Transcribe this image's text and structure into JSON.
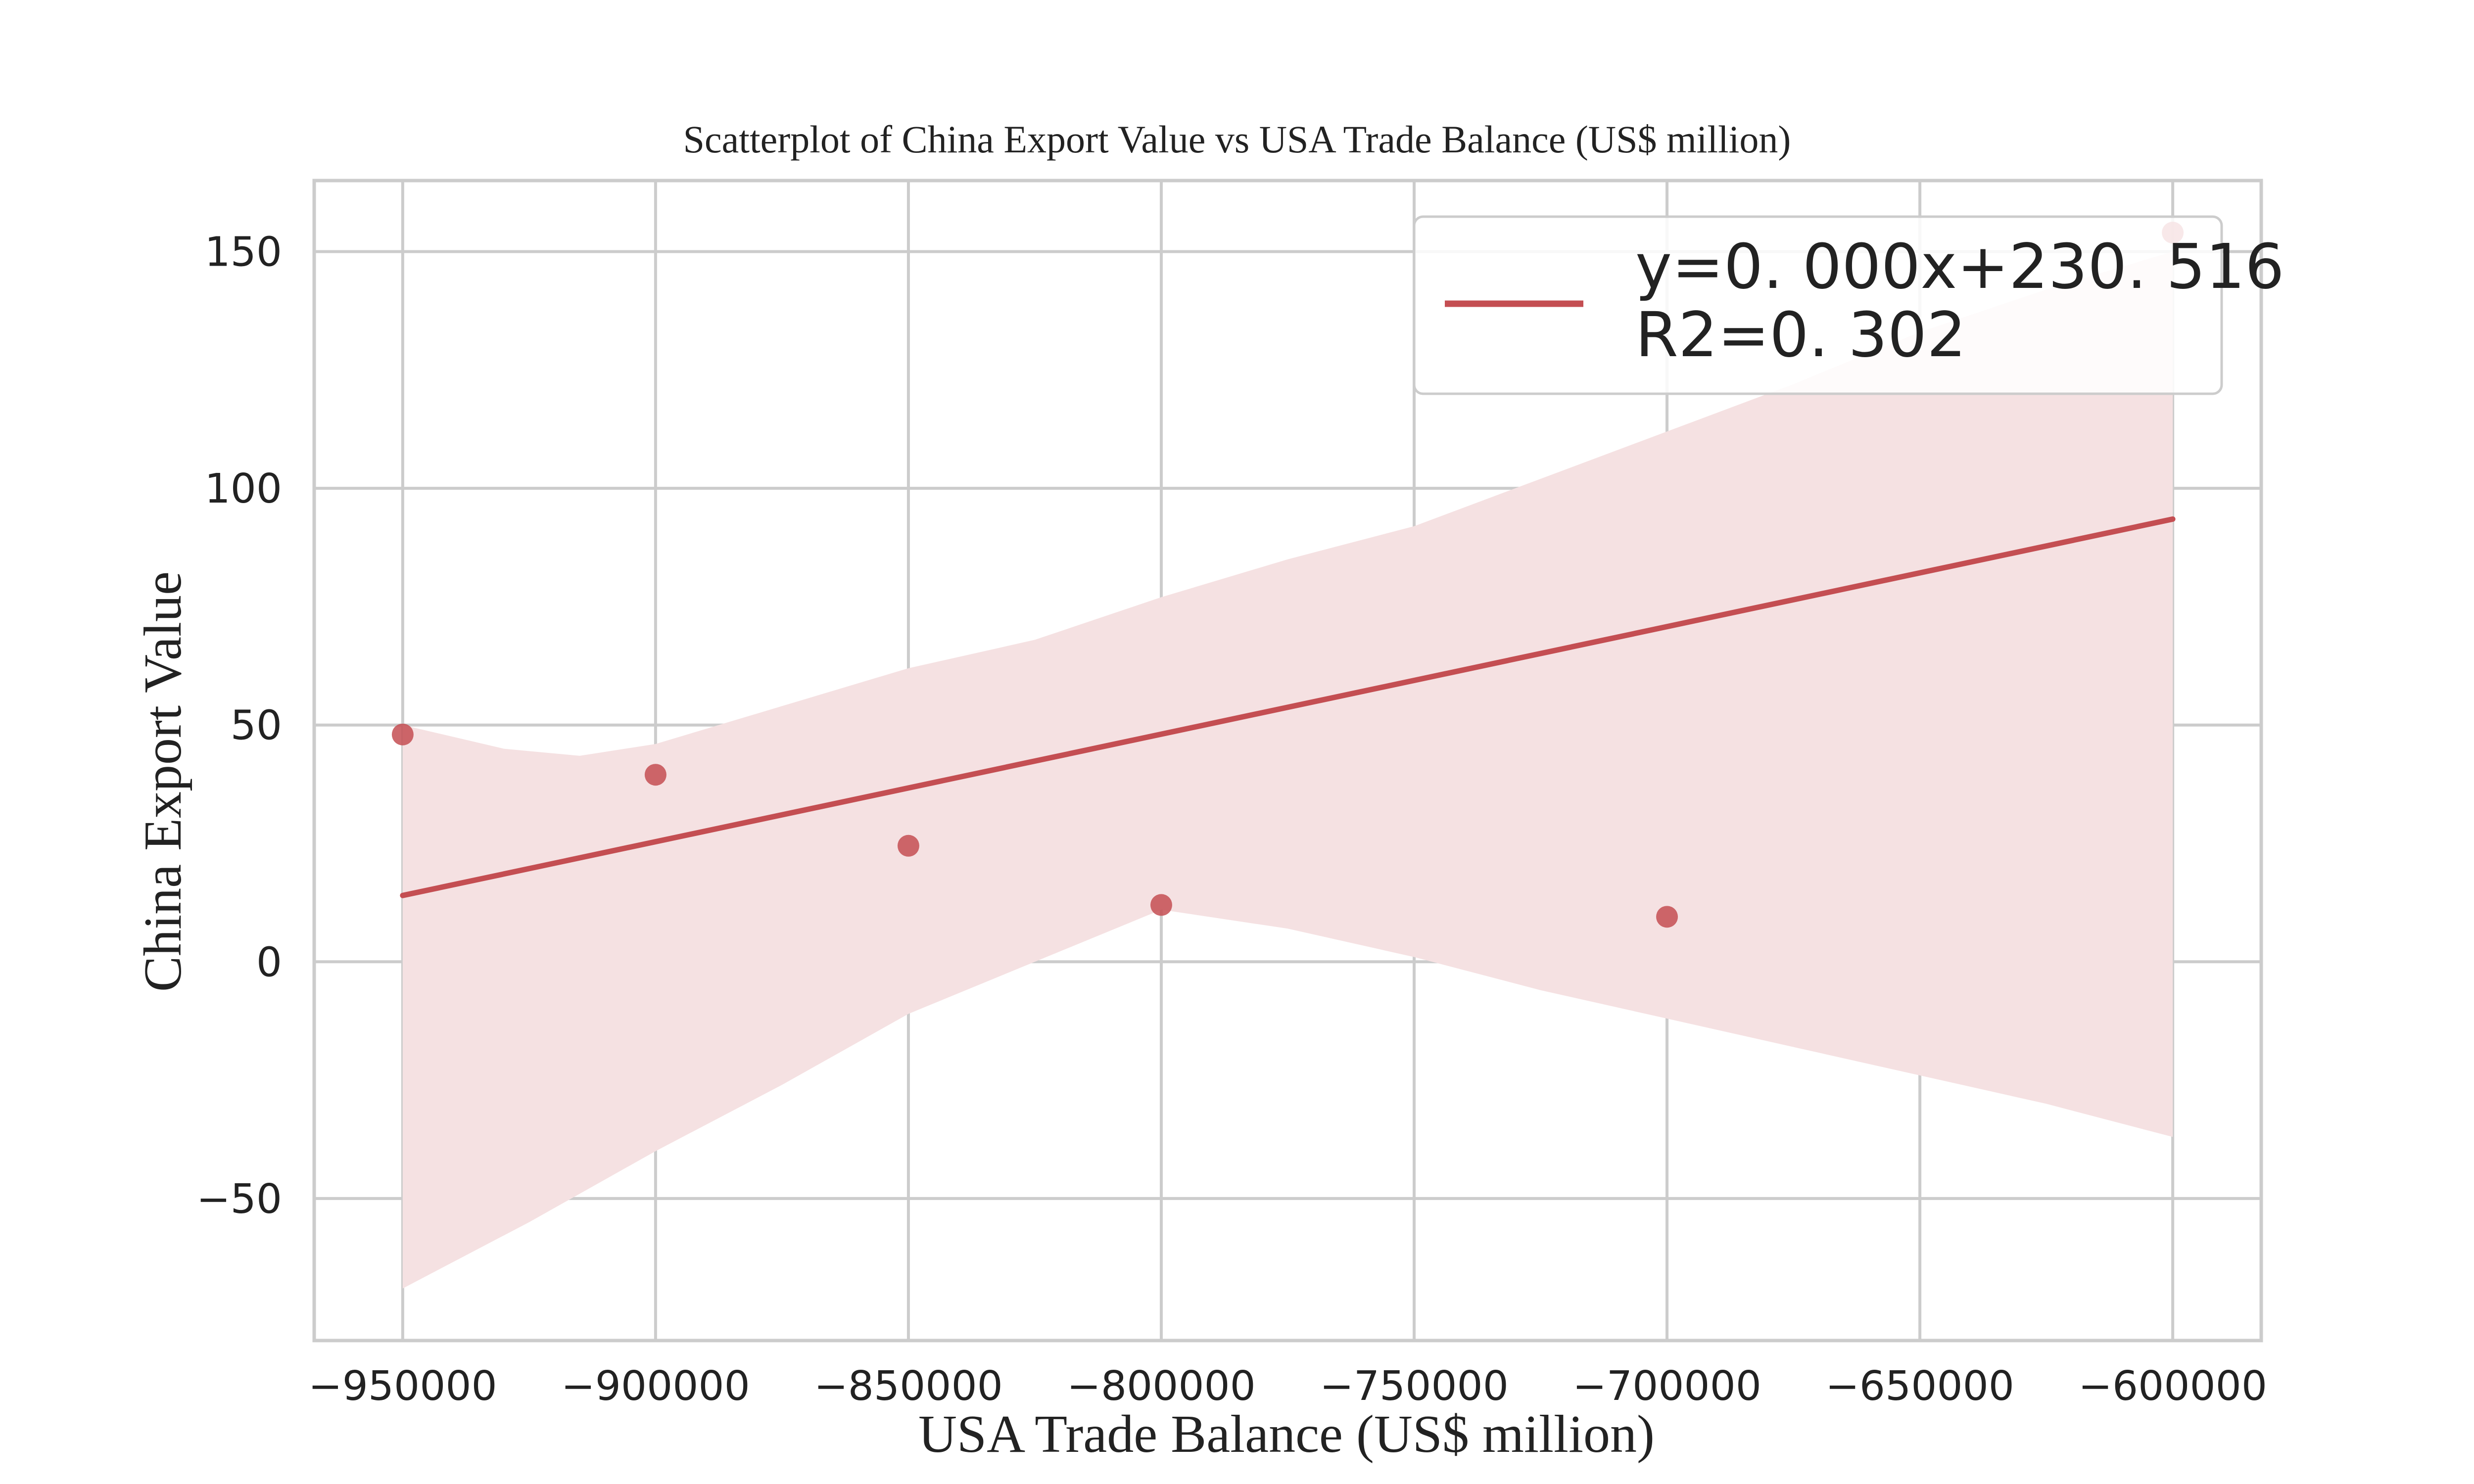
{
  "chart_data": {
    "type": "scatter",
    "title": "Scatterplot of China Export Value vs USA Trade Balance (US$ million)",
    "xlabel": "USA Trade Balance (US$ million)",
    "ylabel": "China Export Value",
    "xlim": [
      -967500,
      -582500
    ],
    "ylim": [
      -80,
      165
    ],
    "xticks": [
      -950000,
      -900000,
      -850000,
      -800000,
      -750000,
      -700000,
      -650000,
      -600000
    ],
    "xtick_labels": [
      "−950000",
      "−900000",
      "−850000",
      "−800000",
      "−750000",
      "−700000",
      "−650000",
      "−600000"
    ],
    "yticks": [
      -50,
      0,
      50,
      100,
      150
    ],
    "ytick_labels": [
      "−50",
      "0",
      "50",
      "100",
      "150"
    ],
    "grid": true,
    "points": [
      {
        "x": -950000,
        "y": 48
      },
      {
        "x": -900000,
        "y": 39.5
      },
      {
        "x": -850000,
        "y": 24.5
      },
      {
        "x": -800000,
        "y": 12
      },
      {
        "x": -700000,
        "y": 9.5
      },
      {
        "x": -600000,
        "y": 154
      }
    ],
    "regression": {
      "x": [
        -950000,
        -600000
      ],
      "y": [
        14,
        93.5
      ],
      "ci_upper": [
        {
          "x": -950000,
          "y": 50
        },
        {
          "x": -930000,
          "y": 45
        },
        {
          "x": -915000,
          "y": 43.5
        },
        {
          "x": -900000,
          "y": 46
        },
        {
          "x": -875000,
          "y": 54
        },
        {
          "x": -850000,
          "y": 62
        },
        {
          "x": -825000,
          "y": 68
        },
        {
          "x": -800000,
          "y": 77
        },
        {
          "x": -775000,
          "y": 85
        },
        {
          "x": -750000,
          "y": 92
        },
        {
          "x": -725000,
          "y": 102
        },
        {
          "x": -700000,
          "y": 112
        },
        {
          "x": -675000,
          "y": 122
        },
        {
          "x": -650000,
          "y": 133
        },
        {
          "x": -625000,
          "y": 142
        },
        {
          "x": -600000,
          "y": 150
        }
      ],
      "ci_lower": [
        {
          "x": -950000,
          "y": -69
        },
        {
          "x": -925000,
          "y": -55
        },
        {
          "x": -900000,
          "y": -40
        },
        {
          "x": -875000,
          "y": -26
        },
        {
          "x": -850000,
          "y": -11
        },
        {
          "x": -825000,
          "y": 0
        },
        {
          "x": -800000,
          "y": 11
        },
        {
          "x": -775000,
          "y": 7
        },
        {
          "x": -750000,
          "y": 1
        },
        {
          "x": -725000,
          "y": -6
        },
        {
          "x": -700000,
          "y": -12
        },
        {
          "x": -675000,
          "y": -18
        },
        {
          "x": -650000,
          "y": -24
        },
        {
          "x": -625000,
          "y": -30
        },
        {
          "x": -600000,
          "y": -37
        }
      ]
    },
    "legend": {
      "placement": "top-right",
      "entries": [
        "y=0. 000x+230. 516",
        "R2=0. 302"
      ]
    },
    "colors": {
      "marker": "#c44e52",
      "line": "#c44e52",
      "band": "#f5e1e2",
      "grid": "#cccccc",
      "frame": "#cccccc"
    }
  }
}
